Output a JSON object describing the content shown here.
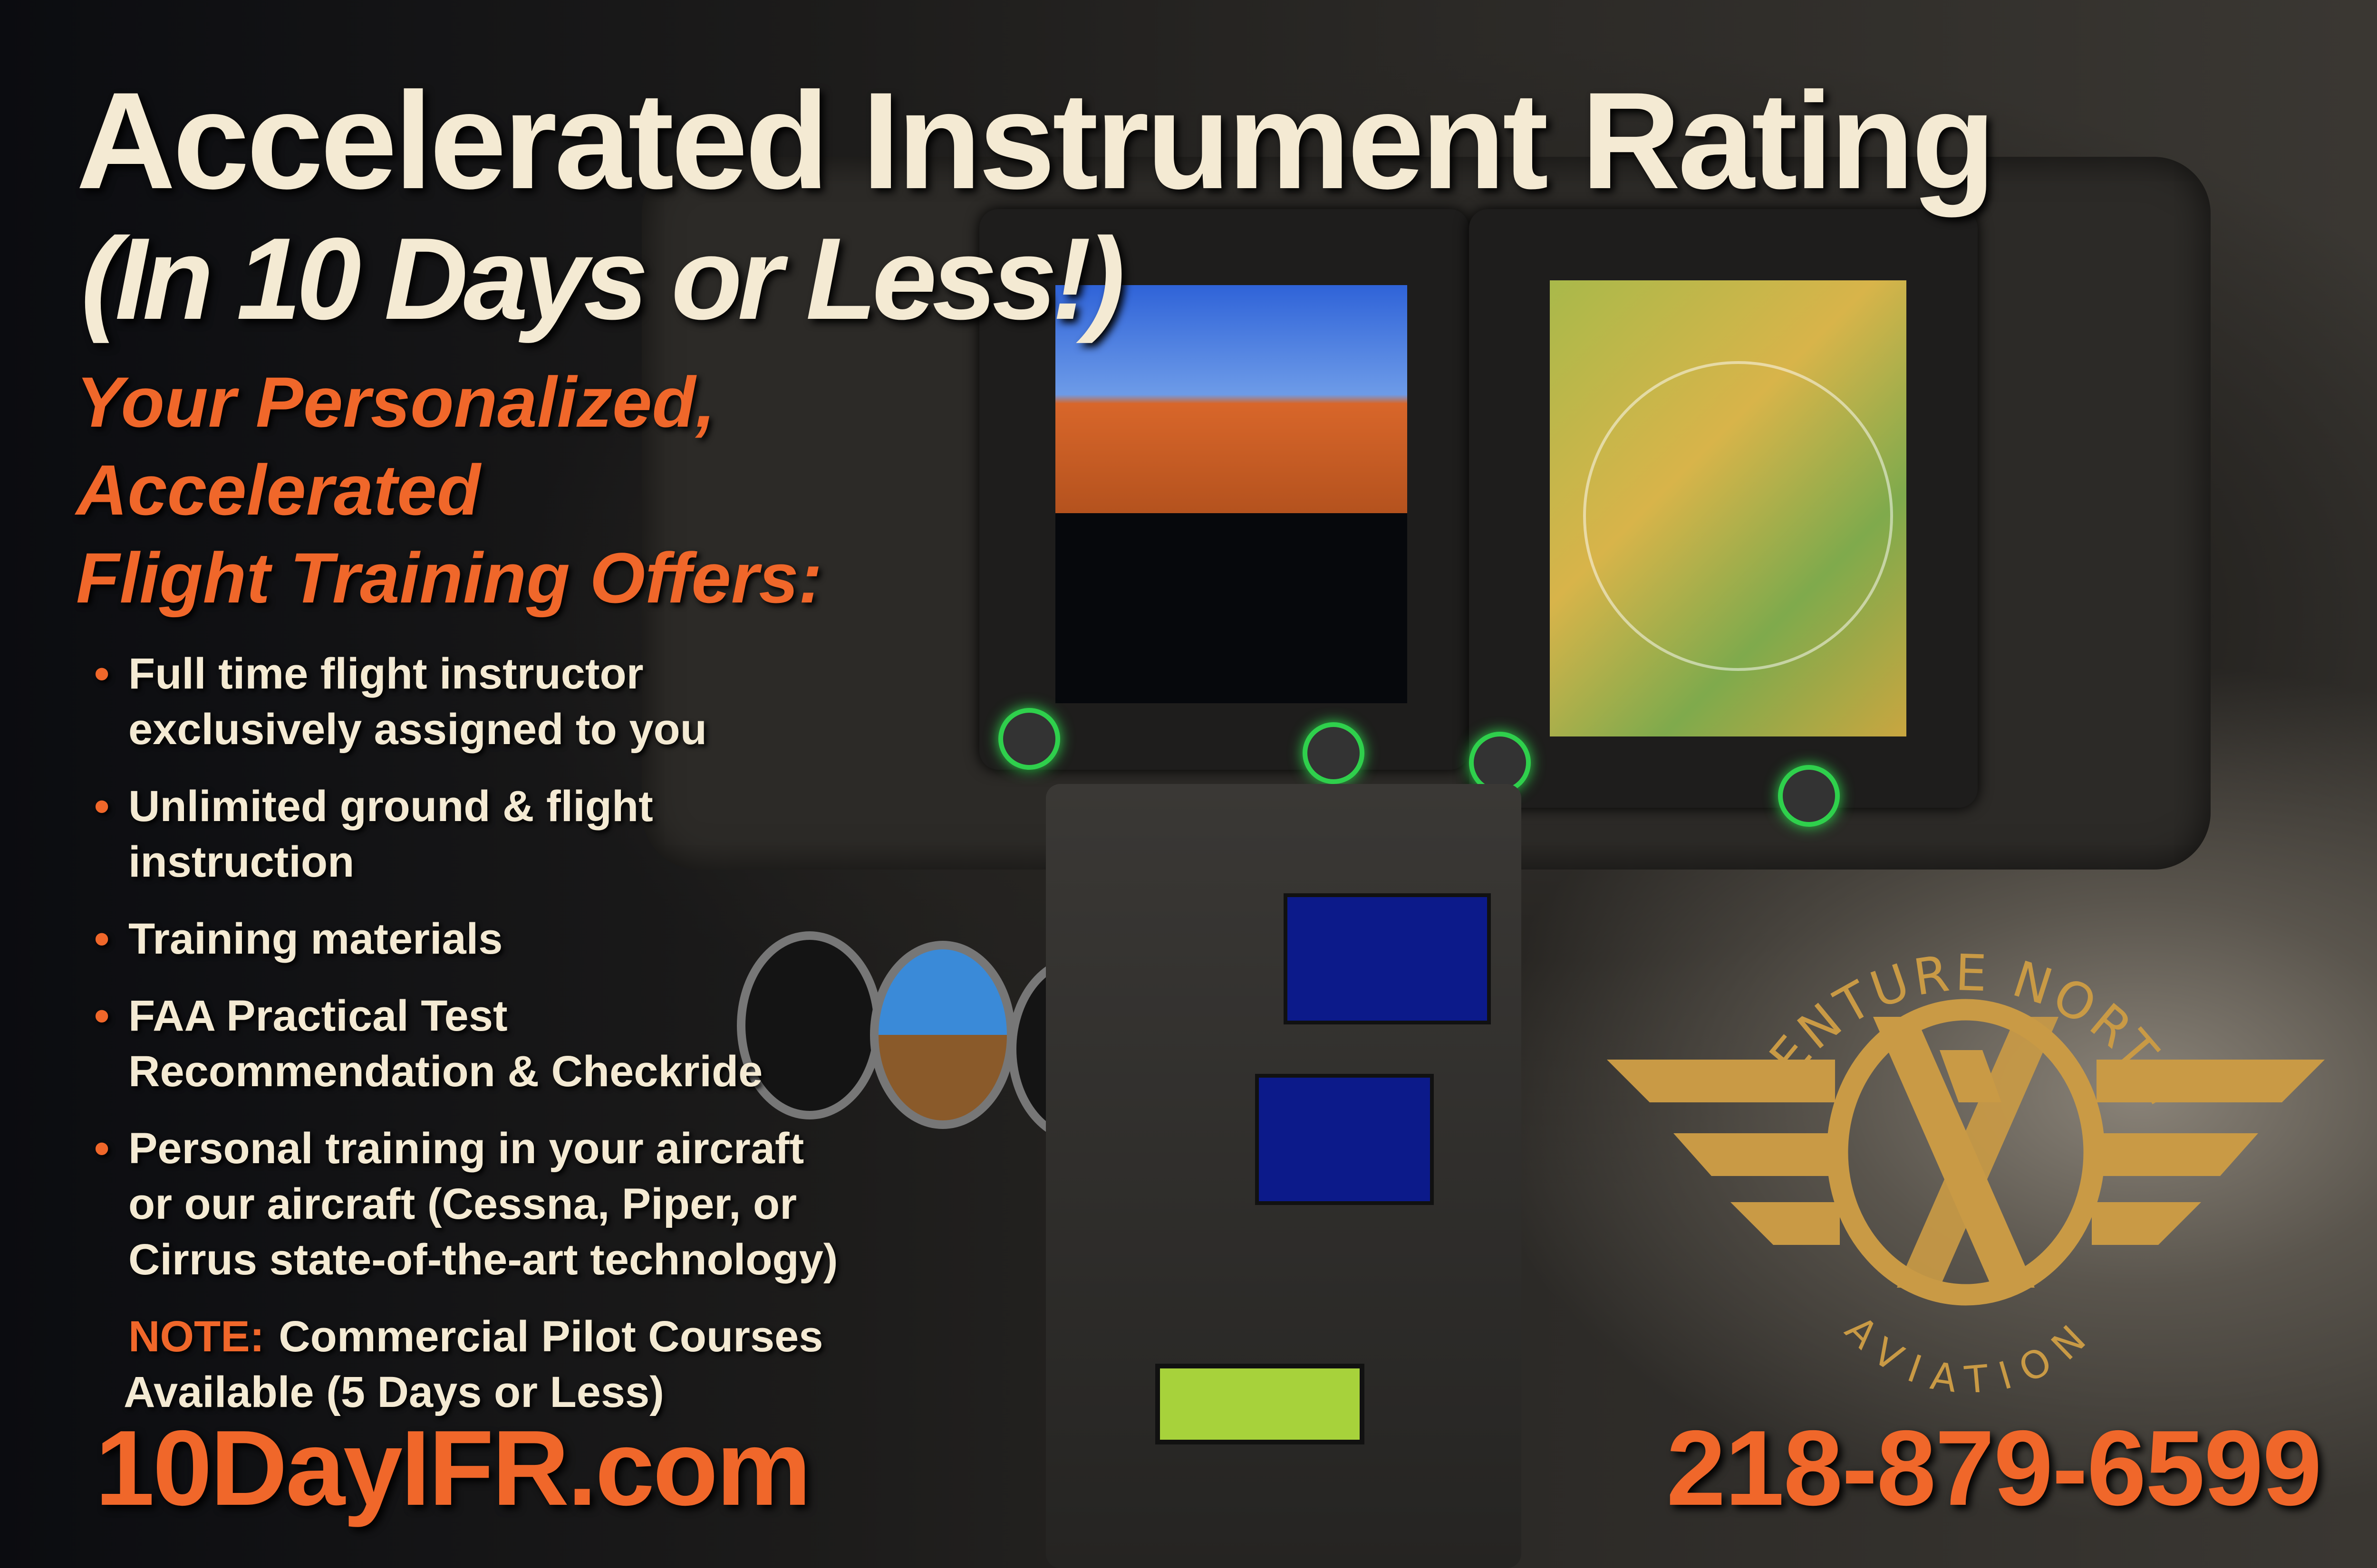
{
  "headline": {
    "title": "Accelerated Instrument Rating",
    "subtitle": "(In 10 Days or Less!)"
  },
  "offer_heading": [
    "Your Personalized,",
    "Accelerated",
    "Flight Training Offers:"
  ],
  "bullets": [
    {
      "line1": "Full time flight instructor",
      "line2": "exclusively assigned to you"
    },
    {
      "line1": "Unlimited ground & flight",
      "line2": "instruction"
    },
    {
      "line1": "Training materials",
      "line2": ""
    },
    {
      "line1": "FAA Practical Test",
      "line2": "Recommendation & Checkride"
    },
    {
      "line1": "Personal training in your aircraft",
      "line2": "or our aircraft (Cessna, Piper, or",
      "line3": "Cirrus state-of-the-art technology)"
    }
  ],
  "note": {
    "label": "NOTE:",
    "line1": "Commercial Pilot Courses",
    "line2": "Available (5 Days or Less)"
  },
  "website": "10DayIFR.com",
  "phone": "218-879-6599",
  "logo": {
    "top_text": "VENTURE NORTH",
    "bottom_text": "AVIATION",
    "color": "#c99a45"
  },
  "colors": {
    "accent": "#f0672a",
    "text": "#f4ead3"
  }
}
